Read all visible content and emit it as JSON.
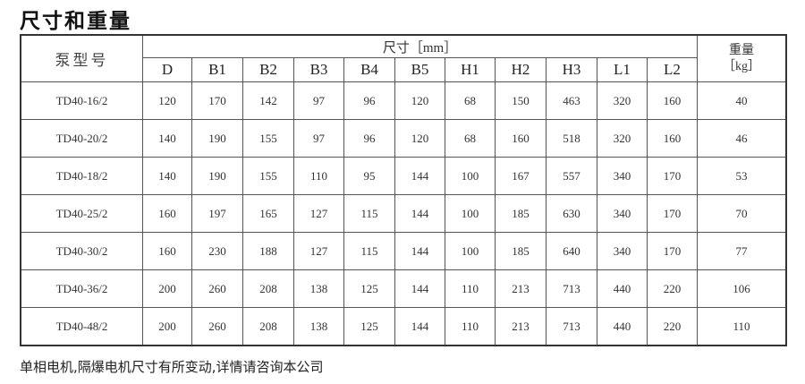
{
  "title": "尺寸和重量",
  "table": {
    "model_header": "泵型号",
    "dim_header": "尺寸［mm］",
    "weight_header_line1": "重量",
    "weight_header_line2": "［kg］",
    "columns": [
      "D",
      "B1",
      "B2",
      "B3",
      "B4",
      "B5",
      "H1",
      "H2",
      "H3",
      "L1",
      "L2"
    ],
    "rows": [
      {
        "model": "TD40-16/2",
        "values": [
          "120",
          "170",
          "142",
          "97",
          "96",
          "120",
          "68",
          "150",
          "463",
          "320",
          "160"
        ],
        "weight": "40"
      },
      {
        "model": "TD40-20/2",
        "values": [
          "140",
          "190",
          "155",
          "97",
          "96",
          "120",
          "68",
          "160",
          "518",
          "320",
          "160"
        ],
        "weight": "46"
      },
      {
        "model": "TD40-18/2",
        "values": [
          "140",
          "190",
          "155",
          "110",
          "95",
          "144",
          "100",
          "167",
          "557",
          "340",
          "170"
        ],
        "weight": "53"
      },
      {
        "model": "TD40-25/2",
        "values": [
          "160",
          "197",
          "165",
          "127",
          "115",
          "144",
          "100",
          "185",
          "630",
          "340",
          "170"
        ],
        "weight": "70"
      },
      {
        "model": "TD40-30/2",
        "values": [
          "160",
          "230",
          "188",
          "127",
          "115",
          "144",
          "100",
          "185",
          "640",
          "340",
          "170"
        ],
        "weight": "77"
      },
      {
        "model": "TD40-36/2",
        "values": [
          "200",
          "260",
          "208",
          "138",
          "125",
          "144",
          "110",
          "213",
          "713",
          "440",
          "220"
        ],
        "weight": "106"
      },
      {
        "model": "TD40-48/2",
        "values": [
          "200",
          "260",
          "208",
          "138",
          "125",
          "144",
          "110",
          "213",
          "713",
          "440",
          "220"
        ],
        "weight": "110"
      }
    ]
  },
  "footer": "单相电机,隔爆电机尺寸有所变动,详情请咨询本公司"
}
